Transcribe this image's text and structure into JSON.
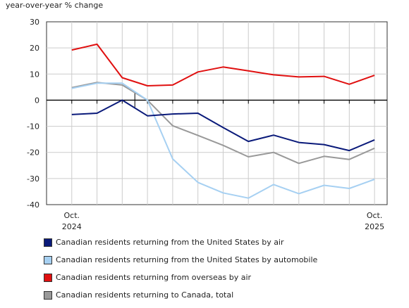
{
  "chart_data": {
    "type": "line",
    "ylabel": "year-over-year % change",
    "ylim": [
      -40,
      30
    ],
    "yticks": [
      30,
      20,
      10,
      0,
      -10,
      -20,
      -30,
      -40
    ],
    "x": [
      "Oct. 2024",
      "Nov. 2024",
      "Dec. 2024",
      "Jan. 2025",
      "Feb. 2025",
      "Mar. 2025",
      "Apr. 2025",
      "May 2025",
      "Jun. 2025",
      "Jul. 2025",
      "Aug. 2025",
      "Sep. 2025",
      "Oct. 2025"
    ],
    "x_tick_labels": [
      {
        "index": 0,
        "line1": "Oct.",
        "line2": "2024"
      },
      {
        "index": 12,
        "line1": "Oct.",
        "line2": "2025"
      }
    ],
    "grid": true,
    "legend_placement": "bottom",
    "series": [
      {
        "name": "Canadian residents returning from the United States by air",
        "color": "#0a1a7a",
        "values": [
          -5.5,
          -5.0,
          0.0,
          -6.0,
          -5.3,
          -5.0,
          -10.5,
          -15.8,
          -13.4,
          -16.2,
          -17.0,
          -19.3,
          -15.2
        ]
      },
      {
        "name": "Canadian residents returning from the United States by automobile",
        "color": "#a6d0f2",
        "values": [
          4.5,
          6.5,
          6.5,
          0.0,
          -22.5,
          -31.5,
          -35.5,
          -37.5,
          -32.3,
          -35.8,
          -32.6,
          -33.8,
          -30.3
        ]
      },
      {
        "name": "Canadian residents returning from overseas by air",
        "color": "#e01010",
        "values": [
          19.2,
          21.4,
          8.6,
          5.5,
          5.8,
          10.8,
          12.7,
          11.2,
          9.7,
          8.9,
          9.1,
          6.1,
          9.5
        ]
      },
      {
        "name": "Canadian residents returning to Canada, total",
        "color": "#999999",
        "values": [
          4.8,
          6.8,
          5.8,
          0.0,
          -9.8,
          -13.5,
          -17.3,
          -21.7,
          -20.0,
          -24.2,
          -21.5,
          -22.7,
          -18.4
        ]
      }
    ]
  }
}
